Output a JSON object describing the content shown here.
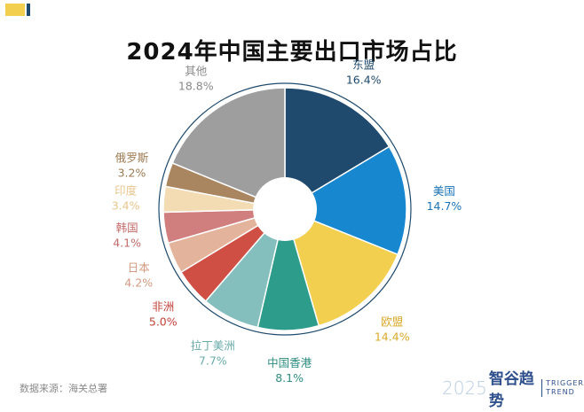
{
  "chart_data": {
    "type": "pie",
    "title": "2024年中国主要出口市场占比",
    "slices": [
      {
        "label": "东盟",
        "value_text": "16.4%",
        "value": 16.4,
        "color": "#1f4a6e",
        "label_color": "#1f4a6e"
      },
      {
        "label": "美国",
        "value_text": "14.7%",
        "value": 14.7,
        "color": "#1787d0",
        "label_color": "#1b73b8"
      },
      {
        "label": "欧盟",
        "value_text": "14.4%",
        "value": 14.4,
        "color": "#f2cf4f",
        "label_color": "#d9a92a"
      },
      {
        "label": "中国香港",
        "value_text": "8.1%",
        "value": 8.1,
        "color": "#2e9c8b",
        "label_color": "#2e8c80"
      },
      {
        "label": "拉丁美洲",
        "value_text": "7.7%",
        "value": 7.7,
        "color": "#84bfbe",
        "label_color": "#6aabaa"
      },
      {
        "label": "非洲",
        "value_text": "5.0%",
        "value": 5.0,
        "color": "#cf4f45",
        "label_color": "#c2423a"
      },
      {
        "label": "日本",
        "value_text": "4.2%",
        "value": 4.2,
        "color": "#e3b49b",
        "label_color": "#d39a80"
      },
      {
        "label": "韩国",
        "value_text": "4.1%",
        "value": 4.1,
        "color": "#d07e7e",
        "label_color": "#c36a6a"
      },
      {
        "label": "印度",
        "value_text": "3.4%",
        "value": 3.4,
        "color": "#f3dbb3",
        "label_color": "#e7c58c"
      },
      {
        "label": "俄罗斯",
        "value_text": "3.2%",
        "value": 3.2,
        "color": "#a98660",
        "label_color": "#9c7950"
      },
      {
        "label": "其他",
        "value_text": "18.8%",
        "value": 18.8,
        "color": "#9e9e9e",
        "label_color": "#8a8a8a"
      }
    ],
    "donut": true,
    "legend": "none"
  },
  "footer": {
    "source": "数据来源：海关总署",
    "brand_year": "2025",
    "brand_name": "智谷趋势",
    "brand_en_1": "TRIGGER",
    "brand_en_2": "TREND"
  },
  "colors": {
    "corner_yellow": "#f2cf4f",
    "corner_blue": "#1f4a6e"
  }
}
